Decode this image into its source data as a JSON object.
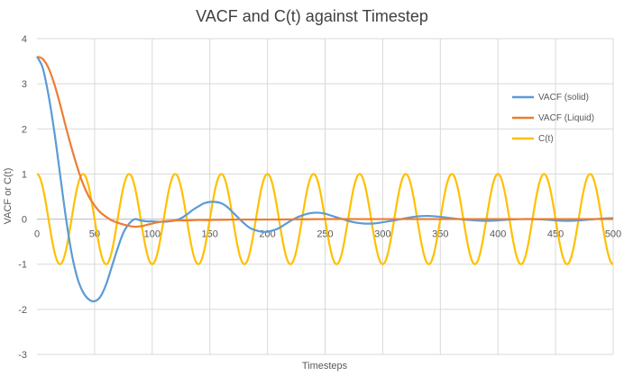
{
  "chart_data": {
    "type": "line",
    "title": "VACF and C(t) against Timestep",
    "xlabel": "Timesteps",
    "ylabel": "VACF  or C(t)",
    "xlim": [
      0,
      500
    ],
    "ylim": [
      -3,
      4
    ],
    "x_ticks": [
      0,
      50,
      100,
      150,
      200,
      250,
      300,
      350,
      400,
      450,
      500
    ],
    "y_ticks": [
      -3,
      -2,
      -1,
      0,
      1,
      2,
      3,
      4
    ],
    "grid": true,
    "legend_position": "right",
    "series": [
      {
        "name": "VACF (solid)",
        "color": "#5B9BD5",
        "x": [
          0,
          5,
          10,
          15,
          20,
          25,
          30,
          35,
          40,
          45,
          50,
          55,
          60,
          65,
          70,
          75,
          80,
          85,
          90,
          95,
          100,
          105,
          110,
          115,
          120,
          125,
          130,
          135,
          140,
          145,
          150,
          155,
          160,
          165,
          170,
          175,
          180,
          185,
          190,
          195,
          200,
          205,
          210,
          215,
          220,
          225,
          230,
          235,
          240,
          245,
          250,
          255,
          260,
          265,
          270,
          275,
          280,
          285,
          290,
          295,
          300,
          310,
          320,
          330,
          340,
          350,
          360,
          370,
          380,
          390,
          400,
          410,
          420,
          430,
          440,
          450,
          460,
          470,
          480,
          490,
          500
        ],
        "values": [
          3.6,
          3.35,
          2.75,
          1.95,
          1.0,
          0.05,
          -0.75,
          -1.3,
          -1.62,
          -1.78,
          -1.82,
          -1.72,
          -1.45,
          -1.05,
          -0.65,
          -0.3,
          -0.1,
          0.0,
          -0.03,
          -0.05,
          -0.05,
          -0.06,
          -0.06,
          -0.05,
          -0.03,
          0.02,
          0.1,
          0.2,
          0.28,
          0.35,
          0.38,
          0.38,
          0.35,
          0.27,
          0.15,
          0.02,
          -0.1,
          -0.2,
          -0.25,
          -0.28,
          -0.28,
          -0.25,
          -0.2,
          -0.12,
          -0.04,
          0.03,
          0.08,
          0.12,
          0.14,
          0.14,
          0.12,
          0.08,
          0.04,
          0.0,
          -0.04,
          -0.07,
          -0.09,
          -0.1,
          -0.1,
          -0.09,
          -0.07,
          -0.03,
          0.02,
          0.06,
          0.07,
          0.05,
          0.02,
          -0.01,
          -0.03,
          -0.04,
          -0.03,
          -0.01,
          0.0,
          0.0,
          -0.01,
          -0.03,
          -0.04,
          -0.03,
          -0.01,
          0.01,
          0.02
        ]
      },
      {
        "name": "VACF (Liquid)",
        "color": "#ED7D31",
        "x": [
          0,
          5,
          10,
          15,
          20,
          25,
          30,
          35,
          40,
          45,
          50,
          55,
          60,
          65,
          70,
          75,
          80,
          85,
          90,
          95,
          100,
          105,
          110,
          115,
          120,
          130,
          140,
          150,
          175,
          200,
          250,
          300,
          350,
          400,
          450,
          500
        ],
        "values": [
          3.6,
          3.55,
          3.35,
          3.0,
          2.55,
          2.05,
          1.58,
          1.15,
          0.78,
          0.5,
          0.3,
          0.15,
          0.05,
          -0.03,
          -0.08,
          -0.12,
          -0.15,
          -0.17,
          -0.16,
          -0.13,
          -0.1,
          -0.07,
          -0.05,
          -0.04,
          -0.03,
          -0.03,
          -0.02,
          -0.02,
          -0.01,
          -0.01,
          0.0,
          0.0,
          0.0,
          0.0,
          0.0,
          0.0
        ]
      },
      {
        "name": "C(t)",
        "color": "#FFC000",
        "function": "cos",
        "amplitude": 1.0,
        "period": 40
      }
    ]
  }
}
